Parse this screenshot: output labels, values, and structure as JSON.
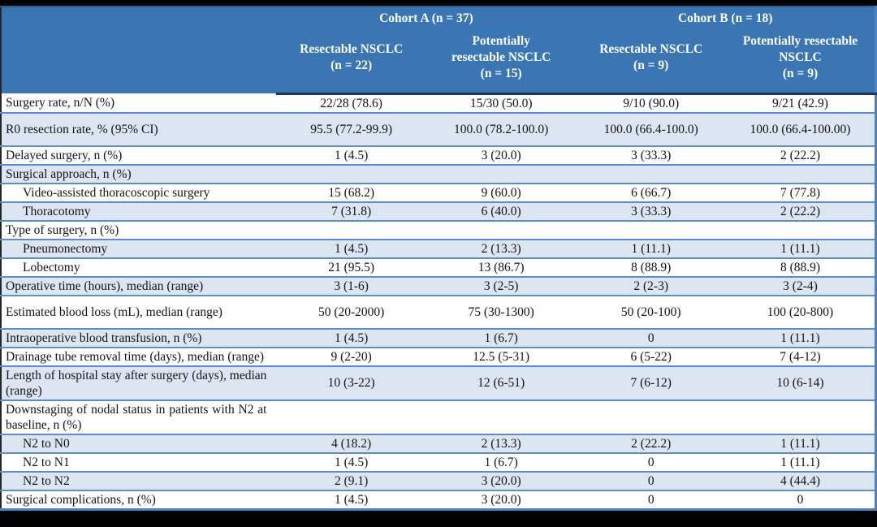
{
  "colors": {
    "header_bg": "#3b76b4",
    "stripe_bg": "#dce6f2",
    "row_border": "#5b8ec6",
    "header_rule": "#17375e",
    "outer_accent": "#4f81bd",
    "frame": "#000000"
  },
  "table": {
    "cohorts": [
      {
        "label": "Cohort A (n = 37)"
      },
      {
        "label": "Cohort B (n = 18)"
      }
    ],
    "columns": [
      "Resectable NSCLC\n(n = 22)",
      "Potentially\nresectable NSCLC\n(n = 15)",
      "Resectable NSCLC\n(n = 9)",
      "Potentially resectable\nNSCLC\n(n = 9)"
    ],
    "rows": [
      {
        "label": "Surgery rate, n/N (%)",
        "indent": false,
        "values": [
          "22/28 (78.6)",
          "15/30 (50.0)",
          "9/10 (90.0)",
          "9/21 (42.9)"
        ]
      },
      {
        "label": "R0 resection rate, % (95% CI)",
        "indent": false,
        "values": [
          "95.5 (77.2-99.9)",
          "100.0 (78.2-100.0)",
          "100.0 (66.4-100.0)",
          "100.0 (66.4-100.00)"
        ]
      },
      {
        "label": "Delayed surgery, n (%)",
        "indent": false,
        "values": [
          "1 (4.5)",
          "3 (20.0)",
          "3 (33.3)",
          "2 (22.2)"
        ]
      },
      {
        "label": "Surgical approach, n (%)",
        "indent": false,
        "values": [
          "",
          "",
          "",
          ""
        ]
      },
      {
        "label": "Video-assisted thoracoscopic surgery",
        "indent": true,
        "values": [
          "15 (68.2)",
          "9 (60.0)",
          "6 (66.7)",
          "7 (77.8)"
        ]
      },
      {
        "label": "Thoracotomy",
        "indent": true,
        "values": [
          "7 (31.8)",
          "6 (40.0)",
          "3 (33.3)",
          "2 (22.2)"
        ]
      },
      {
        "label": "Type of surgery, n (%)",
        "indent": false,
        "values": [
          "",
          "",
          "",
          ""
        ]
      },
      {
        "label": "Pneumonectomy",
        "indent": true,
        "values": [
          "1 (4.5)",
          "2 (13.3)",
          "1 (11.1)",
          "1 (11.1)"
        ]
      },
      {
        "label": "Lobectomy",
        "indent": true,
        "values": [
          "21 (95.5)",
          "13 (86.7)",
          "8 (88.9)",
          "8 (88.9)"
        ]
      },
      {
        "label": "Operative time (hours), median (range)",
        "indent": false,
        "values": [
          "3 (1-6)",
          "3 (2-5)",
          "2 (2-3)",
          "3 (2-4)"
        ]
      },
      {
        "label": "Estimated blood loss (mL), median (range)",
        "indent": false,
        "values": [
          "50 (20-2000)",
          "75 (30-1300)",
          "50 (20-100)",
          "100 (20-800)"
        ]
      },
      {
        "label": "Intraoperative blood transfusion, n (%)",
        "indent": false,
        "values": [
          "1 (4.5)",
          "1 (6.7)",
          "0",
          "1 (11.1)"
        ]
      },
      {
        "label": "Drainage tube removal time (days), median (range)",
        "indent": false,
        "values": [
          "9 (2-20)",
          "12.5 (5-31)",
          "6 (5-22)",
          "7 (4-12)"
        ]
      },
      {
        "label": "Length of hospital stay after surgery (days), median (range)",
        "indent": false,
        "values": [
          "10 (3-22)",
          "12 (6-51)",
          "7 (6-12)",
          "10 (6-14)"
        ]
      },
      {
        "label": "Downstaging of nodal status in patients with N2 at baseline, n (%)",
        "indent": false,
        "values": [
          "",
          "",
          "",
          ""
        ]
      },
      {
        "label": "N2 to N0",
        "indent": true,
        "values": [
          "4 (18.2)",
          "2 (13.3)",
          "2 (22.2)",
          "1 (11.1)"
        ]
      },
      {
        "label": "N2 to N1",
        "indent": true,
        "values": [
          "1 (4.5)",
          "1 (6.7)",
          "0",
          "1 (11.1)"
        ]
      },
      {
        "label": "N2 to N2",
        "indent": true,
        "values": [
          "2 (9.1)",
          "3 (20.0)",
          "0",
          "4 (44.4)"
        ]
      },
      {
        "label": "Surgical complications, n (%)",
        "indent": false,
        "values": [
          "1 (4.5)",
          "3 (20.0)",
          "0",
          "0"
        ]
      }
    ]
  }
}
